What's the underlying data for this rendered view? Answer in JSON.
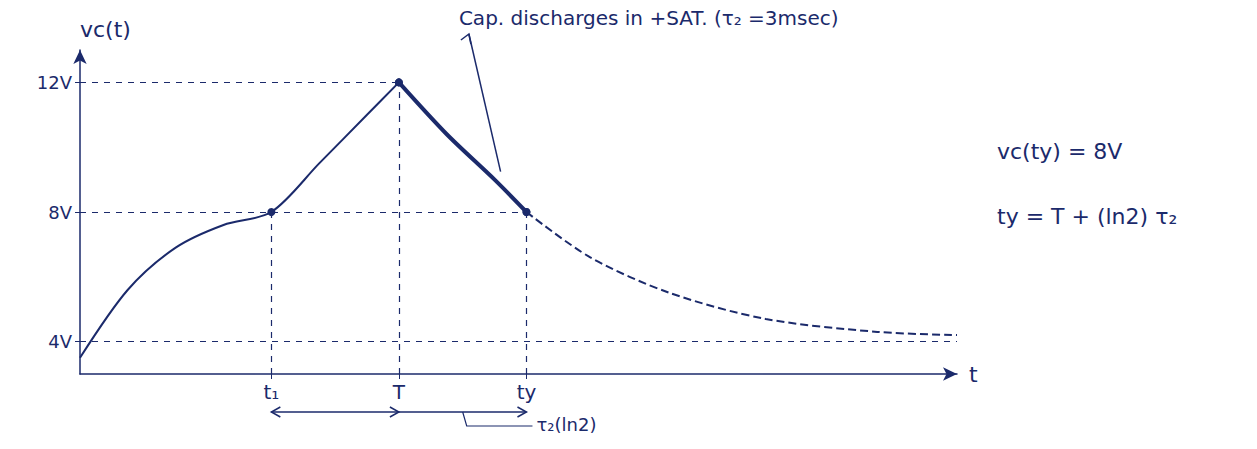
{
  "chart_data": {
    "type": "line",
    "y_label": "vc(t)",
    "x_label": "t",
    "xlim": [
      0,
      5.5
    ],
    "ylim": [
      3,
      13
    ],
    "xticks": [
      {
        "value": 1.2,
        "label": "t₁"
      },
      {
        "value": 2,
        "label": "T"
      },
      {
        "value": 2.8,
        "label": "ty"
      }
    ],
    "yticks": [
      {
        "value": 4,
        "label": "4V"
      },
      {
        "value": 8,
        "label": "8V"
      },
      {
        "value": 12,
        "label": "12V"
      }
    ],
    "grid": false,
    "series": [
      {
        "color": "#1b2a6b",
        "line_style": "solid",
        "x": [
          0,
          0.3,
          0.6,
          0.9,
          1.2,
          1.5,
          1.8,
          2
        ],
        "values": [
          3.5,
          5.6,
          6.9,
          7.6,
          8,
          9.5,
          11,
          12
        ]
      },
      {
        "color": "#1b2a6b",
        "line_style": "solid",
        "x": [
          2,
          2.3,
          2.6,
          2.8
        ],
        "values": [
          12,
          10.4,
          9,
          8
        ]
      },
      {
        "color": "#1b2a6b",
        "line_style": "dashed",
        "x": [
          2.8,
          3.2,
          3.7,
          4.3,
          5,
          5.5
        ],
        "values": [
          8,
          6.6,
          5.5,
          4.7,
          4.3,
          4.2
        ]
      }
    ],
    "annotations": [
      {
        "text": "Cap. discharges in +SAT. (τ₂ =3msec)"
      },
      {
        "text": "vc(ty) = 8V"
      },
      {
        "text": "ty = T + (ln2) τ₂"
      },
      {
        "text": "τ₂(ln2)"
      }
    ]
  }
}
